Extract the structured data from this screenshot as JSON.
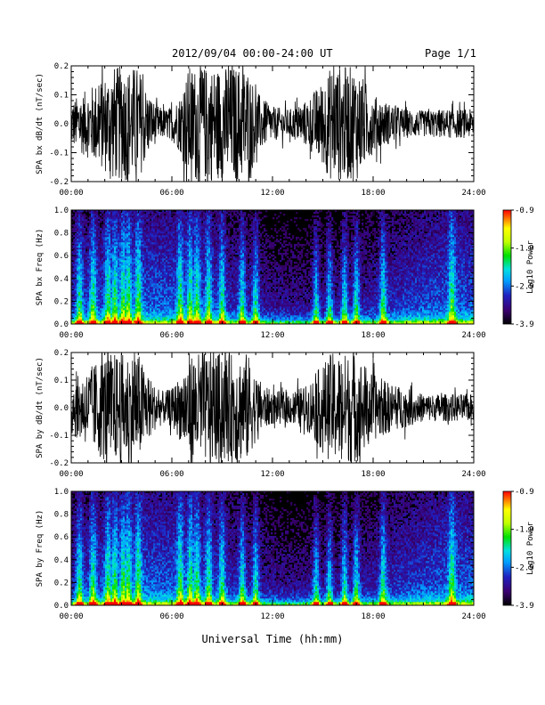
{
  "header": {
    "title": "2012/09/04  00:00-24:00 UT",
    "page": "Page 1/1"
  },
  "xlabel": "Universal Time (hh:mm)",
  "chart_data": [
    {
      "type": "line",
      "ylabel": "SPA bx dB/dt (nT/sec)",
      "xlim": [
        0,
        24
      ],
      "ylim": [
        -0.2,
        0.2
      ],
      "x_ticks": [
        "00:00",
        "06:00",
        "12:00",
        "18:00",
        "24:00"
      ],
      "y_ticks": [
        "0.2",
        "0.1",
        "0.0",
        "-0.1",
        "-0.2"
      ],
      "envelope": {
        "hours": [
          0,
          1,
          2,
          2.5,
          3,
          3.5,
          4,
          4.5,
          5,
          5.5,
          6,
          6.5,
          7,
          8,
          9,
          10,
          10.5,
          11,
          11.5,
          12,
          13,
          14,
          15,
          15.5,
          16,
          16.5,
          17,
          17.5,
          18,
          19,
          20,
          21,
          22,
          23,
          24
        ],
        "amplitude": [
          0.08,
          0.12,
          0.17,
          0.2,
          0.2,
          0.2,
          0.2,
          0.12,
          0.07,
          0.05,
          0.06,
          0.1,
          0.2,
          0.2,
          0.2,
          0.2,
          0.2,
          0.12,
          0.08,
          0.06,
          0.05,
          0.08,
          0.15,
          0.2,
          0.2,
          0.2,
          0.2,
          0.15,
          0.1,
          0.07,
          0.05,
          0.045,
          0.05,
          0.05,
          0.05
        ]
      }
    },
    {
      "type": "heatmap",
      "ylabel": "SPA bx Freq (Hz)",
      "xlim": [
        0,
        24
      ],
      "ylim": [
        0,
        1
      ],
      "x_ticks": [
        "00:00",
        "06:00",
        "12:00",
        "18:00",
        "24:00"
      ],
      "y_ticks": [
        "1.0",
        "0.8",
        "0.6",
        "0.4",
        "0.2",
        "0.0"
      ],
      "colorbar": {
        "label": "Log10 Power",
        "range": [
          -3.9,
          -0.9
        ],
        "ticks": [
          "-0.9",
          "-1.9",
          "-2.9",
          "-3.9"
        ]
      },
      "bursts_hours": [
        0.5,
        1.3,
        2.2,
        2.6,
        3.1,
        3.4,
        4.0,
        6.5,
        7.1,
        7.5,
        8.2,
        9.0,
        10.2,
        11.0,
        14.6,
        15.4,
        16.3,
        17.0,
        18.6,
        22.7
      ]
    },
    {
      "type": "line",
      "ylabel": "SPA by dB/dt (nT/sec)",
      "xlim": [
        0,
        24
      ],
      "ylim": [
        -0.2,
        0.2
      ],
      "x_ticks": [
        "00:00",
        "06:00",
        "12:00",
        "18:00",
        "24:00"
      ],
      "y_ticks": [
        "0.2",
        "0.1",
        "0.0",
        "-0.1",
        "-0.2"
      ],
      "envelope": {
        "hours": [
          0,
          1,
          2,
          2.5,
          3,
          3.5,
          4,
          4.5,
          5,
          5.5,
          6,
          6.5,
          7,
          8,
          9,
          10,
          10.5,
          11,
          11.5,
          12,
          13,
          14,
          15,
          15.5,
          16,
          16.5,
          17,
          17.5,
          18,
          19,
          20,
          21,
          22,
          23,
          24
        ],
        "amplitude": [
          0.1,
          0.14,
          0.2,
          0.2,
          0.2,
          0.2,
          0.2,
          0.13,
          0.08,
          0.06,
          0.07,
          0.12,
          0.2,
          0.2,
          0.2,
          0.2,
          0.2,
          0.12,
          0.08,
          0.06,
          0.06,
          0.08,
          0.16,
          0.2,
          0.2,
          0.2,
          0.2,
          0.16,
          0.12,
          0.09,
          0.07,
          0.05,
          0.05,
          0.05,
          0.05
        ]
      }
    },
    {
      "type": "heatmap",
      "ylabel": "SPA by Freq (Hz)",
      "xlim": [
        0,
        24
      ],
      "ylim": [
        0,
        1
      ],
      "x_ticks": [
        "00:00",
        "06:00",
        "12:00",
        "18:00",
        "24:00"
      ],
      "y_ticks": [
        "1.0",
        "0.8",
        "0.6",
        "0.4",
        "0.2",
        "0.0"
      ],
      "colorbar": {
        "label": "Log10 Power",
        "range": [
          -3.9,
          -0.9
        ],
        "ticks": [
          "-0.9",
          "-1.9",
          "-2.9",
          "-3.9"
        ]
      },
      "bursts_hours": [
        0.5,
        1.3,
        2.2,
        2.6,
        3.1,
        3.4,
        4.0,
        6.5,
        7.1,
        7.5,
        8.2,
        9.0,
        10.2,
        11.0,
        14.6,
        15.4,
        16.3,
        17.0,
        18.6,
        22.7
      ]
    }
  ]
}
